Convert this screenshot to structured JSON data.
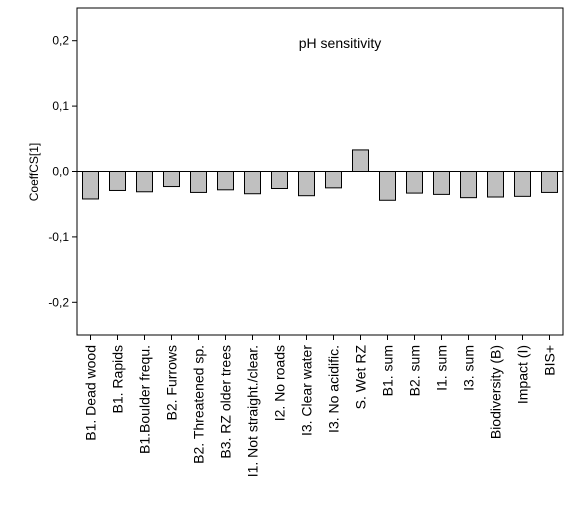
{
  "chart_data": {
    "type": "bar",
    "title": "pH sensitivity",
    "xlabel": "",
    "ylabel": "CoeffCS[1]",
    "ylim": [
      -0.25,
      0.25
    ],
    "yticks": [
      0.2,
      0.1,
      0.0,
      -0.1,
      -0.2
    ],
    "ytick_labels": [
      "0,2",
      "0,1",
      "0,0",
      "-0,1",
      "-0,2"
    ],
    "grid": false,
    "categories": [
      "B1. Dead wood",
      "B1. Rapids",
      "B1.Boulder frequ.",
      "B2. Furrows",
      "B2. Threatened sp.",
      "B3. RZ older trees",
      "I1. Not straight./clear.",
      "I2. No roads",
      "I3. Clear water",
      "I3. No acidific.",
      "S. Wet RZ",
      "B1. sum",
      "B2. sum",
      "I1. sum",
      "I3. sum",
      "Biodiversity (B)",
      "Impact (I)",
      "BIS+"
    ],
    "values": [
      -0.042,
      -0.029,
      -0.031,
      -0.023,
      -0.032,
      -0.028,
      -0.034,
      -0.026,
      -0.037,
      -0.025,
      0.033,
      -0.044,
      -0.033,
      -0.035,
      -0.04,
      -0.039,
      -0.038,
      -0.032
    ],
    "colors": {
      "bar_fill": "#c0c0c0",
      "bar_stroke": "#000000",
      "axis": "#000000"
    }
  }
}
